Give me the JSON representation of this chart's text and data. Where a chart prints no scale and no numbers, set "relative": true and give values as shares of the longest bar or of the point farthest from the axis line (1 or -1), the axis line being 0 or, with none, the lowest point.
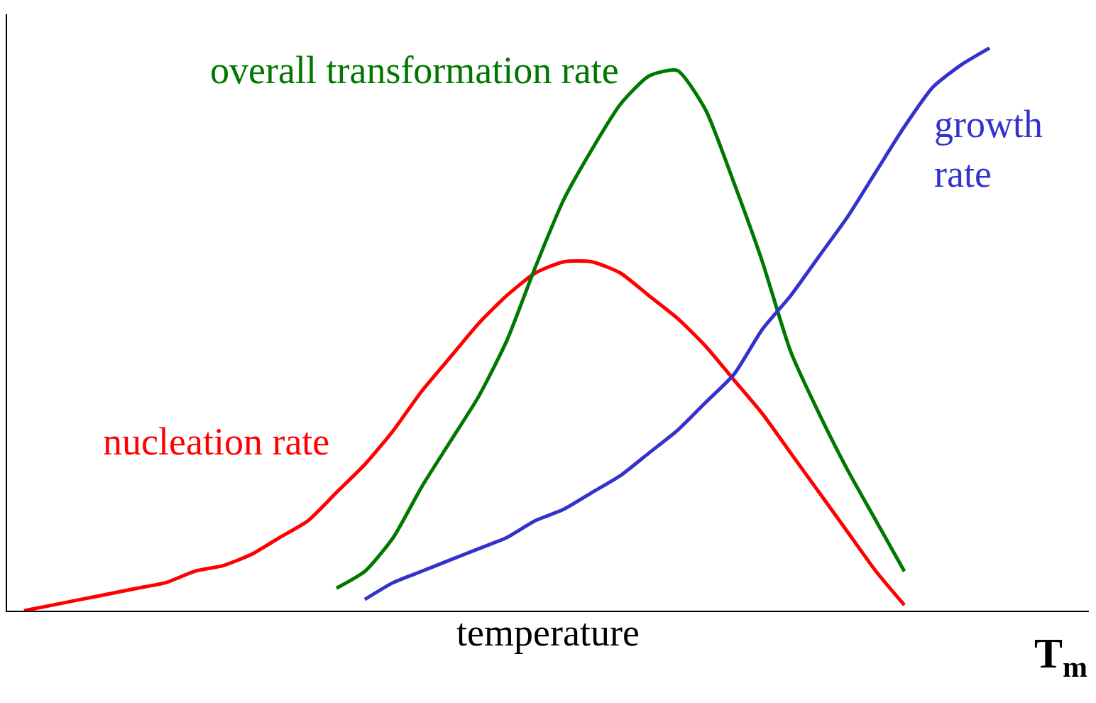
{
  "chart_data": {
    "type": "line",
    "relative": true,
    "xlabel": "temperature",
    "categories": [
      null,
      null,
      null,
      null,
      null,
      null,
      null,
      null,
      null,
      null,
      null,
      null,
      null,
      null,
      null,
      null,
      null,
      null,
      null,
      null,
      null,
      null,
      null,
      null,
      null,
      null,
      null,
      null,
      null,
      null,
      null,
      null,
      null,
      null,
      null,
      null,
      null,
      null
    ],
    "series": [
      {
        "name": "nucleation rate",
        "color": "#ff0000",
        "values": [
          0,
          0.01,
          0.02,
          0.03,
          0.04,
          0.05,
          0.07,
          0.08,
          0.1,
          0.13,
          0.16,
          0.21,
          0.26,
          0.32,
          0.39,
          0.45,
          0.51,
          0.56,
          0.6,
          0.62,
          0.62,
          0.6,
          0.56,
          0.52,
          0.47,
          0.41,
          0.35,
          0.28,
          0.21,
          0.14,
          0.07,
          0.01,
          null,
          null,
          null,
          null,
          null,
          null
        ]
      },
      {
        "name": "overall transformation rate",
        "color": "#007800",
        "values": [
          null,
          null,
          null,
          null,
          null,
          null,
          null,
          null,
          null,
          null,
          null,
          0.04,
          0.07,
          0.13,
          0.22,
          0.3,
          0.38,
          0.48,
          0.61,
          0.73,
          0.82,
          0.9,
          0.95,
          0.96,
          0.89,
          0.76,
          0.62,
          0.46,
          0.35,
          0.25,
          0.16,
          0.07,
          null,
          null,
          null,
          null,
          null,
          null
        ]
      },
      {
        "name": "growth rate",
        "color": "#3333cc",
        "values": [
          null,
          null,
          null,
          null,
          null,
          null,
          null,
          null,
          null,
          null,
          null,
          null,
          0.02,
          0.05,
          0.07,
          0.09,
          0.11,
          0.13,
          0.16,
          0.18,
          0.21,
          0.24,
          0.28,
          0.32,
          0.37,
          0.42,
          0.5,
          0.56,
          0.63,
          0.7,
          0.78,
          0.86,
          0.93,
          0.97,
          1.0,
          null,
          null,
          null
        ]
      }
    ],
    "annotations": [
      "T$_{m}$"
    ]
  }
}
